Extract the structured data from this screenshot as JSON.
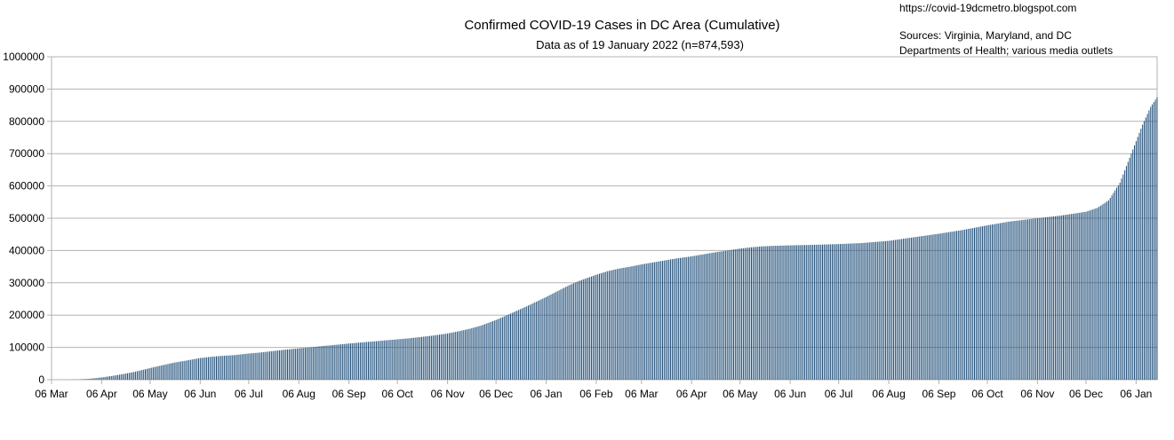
{
  "header": {
    "title": "Confirmed COVID-19 Cases in DC Area (Cumulative)",
    "subtitle": "Data as of 19 January 2022 (n=874,593)",
    "url": "https://covid-19dcmetro.blogspot.com",
    "sources_line1": "Sources: Virginia, Maryland, and DC",
    "sources_line2": "Departments of Health; various media outlets"
  },
  "chart_data": {
    "type": "bar",
    "title": "Confirmed COVID-19 Cases in DC Area (Cumulative)",
    "subtitle": "Data as of 19 January 2022 (n=874,593)",
    "xlabel": "",
    "ylabel": "",
    "ylim": [
      0,
      1000000
    ],
    "y_ticks": [
      0,
      100000,
      200000,
      300000,
      400000,
      500000,
      600000,
      700000,
      800000,
      900000,
      1000000
    ],
    "y_tick_labels": [
      "0",
      "100000",
      "200000",
      "300000",
      "400000",
      "500000",
      "600000",
      "700000",
      "800000",
      "900000",
      "1000000"
    ],
    "x_start": "2020-03-06",
    "x_end": "2022-01-19",
    "x_tick_dates": [
      "2020-03-06",
      "2020-04-06",
      "2020-05-06",
      "2020-06-06",
      "2020-07-06",
      "2020-08-06",
      "2020-09-06",
      "2020-10-06",
      "2020-11-06",
      "2020-12-06",
      "2021-01-06",
      "2021-02-06",
      "2021-03-06",
      "2021-04-06",
      "2021-05-06",
      "2021-06-06",
      "2021-07-06",
      "2021-08-06",
      "2021-09-06",
      "2021-10-06",
      "2021-11-06",
      "2021-12-06",
      "2022-01-06"
    ],
    "x_tick_labels": [
      "06 Mar",
      "06 Apr",
      "06 May",
      "06 Jun",
      "06 Jul",
      "06 Aug",
      "06 Sep",
      "06 Oct",
      "06 Nov",
      "06 Dec",
      "06 Jan",
      "06 Feb",
      "06 Mar",
      "06 Apr",
      "06 May",
      "06 Jun",
      "06 Jul",
      "06 Aug",
      "06 Sep",
      "06 Oct",
      "06 Nov",
      "06 Dec",
      "06 Jan"
    ],
    "grid": true,
    "legend": "none",
    "bar_color": "#1f4e79",
    "series": [
      {
        "values_by_date": [
          [
            "2020-03-06",
            0
          ],
          [
            "2020-03-15",
            100
          ],
          [
            "2020-03-22",
            600
          ],
          [
            "2020-03-29",
            2500
          ],
          [
            "2020-04-06",
            7000
          ],
          [
            "2020-04-13",
            12000
          ],
          [
            "2020-04-20",
            18000
          ],
          [
            "2020-04-27",
            25000
          ],
          [
            "2020-05-06",
            36000
          ],
          [
            "2020-05-13",
            44000
          ],
          [
            "2020-05-20",
            52000
          ],
          [
            "2020-05-27",
            58000
          ],
          [
            "2020-06-06",
            67000
          ],
          [
            "2020-06-13",
            71000
          ],
          [
            "2020-06-20",
            74000
          ],
          [
            "2020-06-27",
            76000
          ],
          [
            "2020-07-06",
            81000
          ],
          [
            "2020-07-13",
            84000
          ],
          [
            "2020-07-20",
            88000
          ],
          [
            "2020-07-27",
            92000
          ],
          [
            "2020-08-06",
            97000
          ],
          [
            "2020-08-13",
            100000
          ],
          [
            "2020-08-20",
            104000
          ],
          [
            "2020-08-27",
            107000
          ],
          [
            "2020-09-06",
            112000
          ],
          [
            "2020-09-13",
            115000
          ],
          [
            "2020-09-20",
            118000
          ],
          [
            "2020-09-27",
            121000
          ],
          [
            "2020-10-06",
            125000
          ],
          [
            "2020-10-13",
            128000
          ],
          [
            "2020-10-20",
            132000
          ],
          [
            "2020-10-27",
            136000
          ],
          [
            "2020-11-06",
            143000
          ],
          [
            "2020-11-13",
            150000
          ],
          [
            "2020-11-20",
            158000
          ],
          [
            "2020-11-27",
            168000
          ],
          [
            "2020-12-06",
            185000
          ],
          [
            "2020-12-13",
            200000
          ],
          [
            "2020-12-20",
            216000
          ],
          [
            "2020-12-27",
            232000
          ],
          [
            "2021-01-06",
            256000
          ],
          [
            "2021-01-13",
            274000
          ],
          [
            "2021-01-20",
            292000
          ],
          [
            "2021-01-27",
            307000
          ],
          [
            "2021-02-06",
            325000
          ],
          [
            "2021-02-13",
            336000
          ],
          [
            "2021-02-20",
            344000
          ],
          [
            "2021-02-27",
            350000
          ],
          [
            "2021-03-06",
            357000
          ],
          [
            "2021-03-13",
            363000
          ],
          [
            "2021-03-20",
            369000
          ],
          [
            "2021-03-27",
            375000
          ],
          [
            "2021-04-06",
            382000
          ],
          [
            "2021-04-13",
            388000
          ],
          [
            "2021-04-20",
            394000
          ],
          [
            "2021-04-27",
            399000
          ],
          [
            "2021-05-06",
            406000
          ],
          [
            "2021-05-13",
            410000
          ],
          [
            "2021-05-20",
            413000
          ],
          [
            "2021-05-27",
            414500
          ],
          [
            "2021-06-06",
            416000
          ],
          [
            "2021-06-20",
            417500
          ],
          [
            "2021-07-06",
            420000
          ],
          [
            "2021-07-20",
            423000
          ],
          [
            "2021-08-06",
            430000
          ],
          [
            "2021-08-20",
            440000
          ],
          [
            "2021-09-06",
            452000
          ],
          [
            "2021-09-20",
            463000
          ],
          [
            "2021-10-06",
            478000
          ],
          [
            "2021-10-20",
            490000
          ],
          [
            "2021-11-06",
            500000
          ],
          [
            "2021-11-20",
            508000
          ],
          [
            "2021-12-06",
            520000
          ],
          [
            "2021-12-13",
            532000
          ],
          [
            "2021-12-20",
            555000
          ],
          [
            "2021-12-27",
            610000
          ],
          [
            "2022-01-03",
            700000
          ],
          [
            "2022-01-10",
            790000
          ],
          [
            "2022-01-15",
            845000
          ],
          [
            "2022-01-19",
            874593
          ]
        ]
      }
    ]
  }
}
